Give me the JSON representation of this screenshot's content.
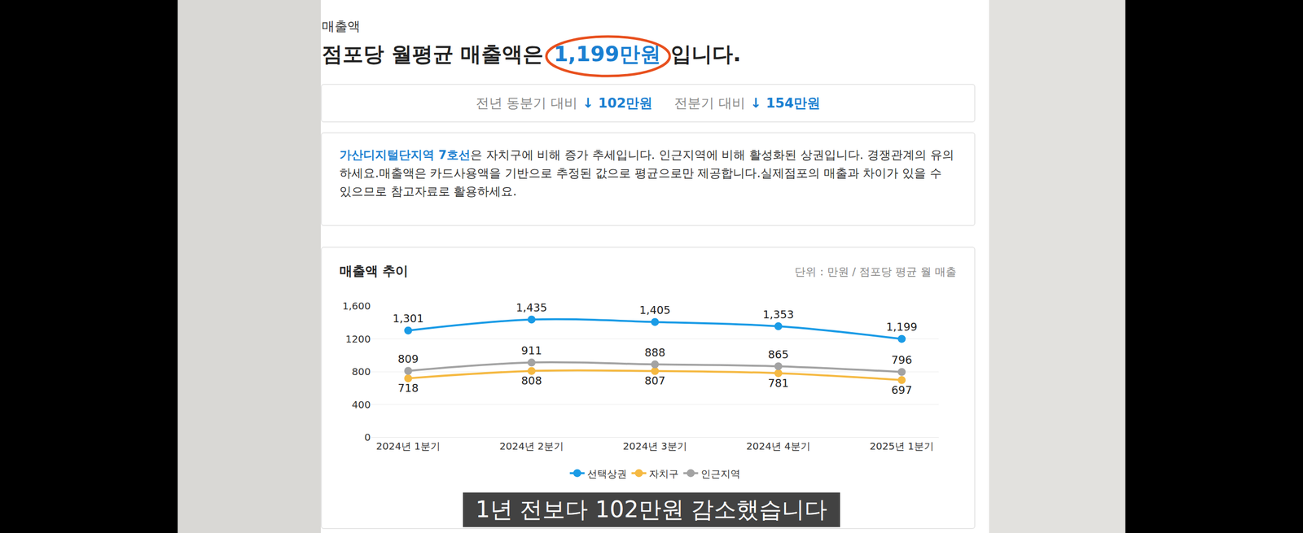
{
  "section_label": "매출액",
  "headline": {
    "before": "점포당 월평균 매출액은",
    "value": "1,199만원",
    "after": "입니다."
  },
  "comparison": [
    {
      "label": "전년 동분기 대비",
      "value": "↓ 102만원"
    },
    {
      "label": "전분기 대비",
      "value": "↓ 154만원"
    }
  ],
  "description": {
    "highlight": "가산디지털단지역 7호선",
    "text": "은 자치구에 비해 증가 추세입니다. 인근지역에 비해 활성화된 상권입니다. 경쟁관계의 유의하세요.매출액은 카드사용액을 기반으로 추정된 값으로 평균으로만 제공합니다.실제점포의 매출과 차이가 있을 수 있으므로 참고자료로 활용하세요."
  },
  "chart_data": {
    "type": "line",
    "title": "매출액 추이",
    "subtitle": "단위 : 만원 / 점포당 평균 월 매출",
    "categories": [
      "2024년 1분기",
      "2024년 2분기",
      "2024년 3분기",
      "2024년 4분기",
      "2025년 1분기"
    ],
    "series": [
      {
        "name": "선택상권",
        "color": "#1a9be6",
        "values": [
          1301,
          1435,
          1405,
          1353,
          1199
        ],
        "value_labels": [
          "1,301",
          "1,435",
          "1,405",
          "1,353",
          "1,199"
        ]
      },
      {
        "name": "자치구",
        "color": "#f5b942",
        "values": [
          718,
          808,
          807,
          781,
          697
        ]
      },
      {
        "name": "인근지역",
        "color": "#a3a3a3",
        "values": [
          809,
          911,
          888,
          865,
          796
        ]
      }
    ],
    "ylim": [
      0,
      1600
    ],
    "yticks": [
      0,
      400,
      800,
      1200,
      {
        "value": 1600,
        "label": "1,600"
      }
    ],
    "grid": true,
    "data_labels": true,
    "legend": "bottom",
    "marker": "circle"
  },
  "caption": "1년 전보다 102만원 감소했습니다"
}
